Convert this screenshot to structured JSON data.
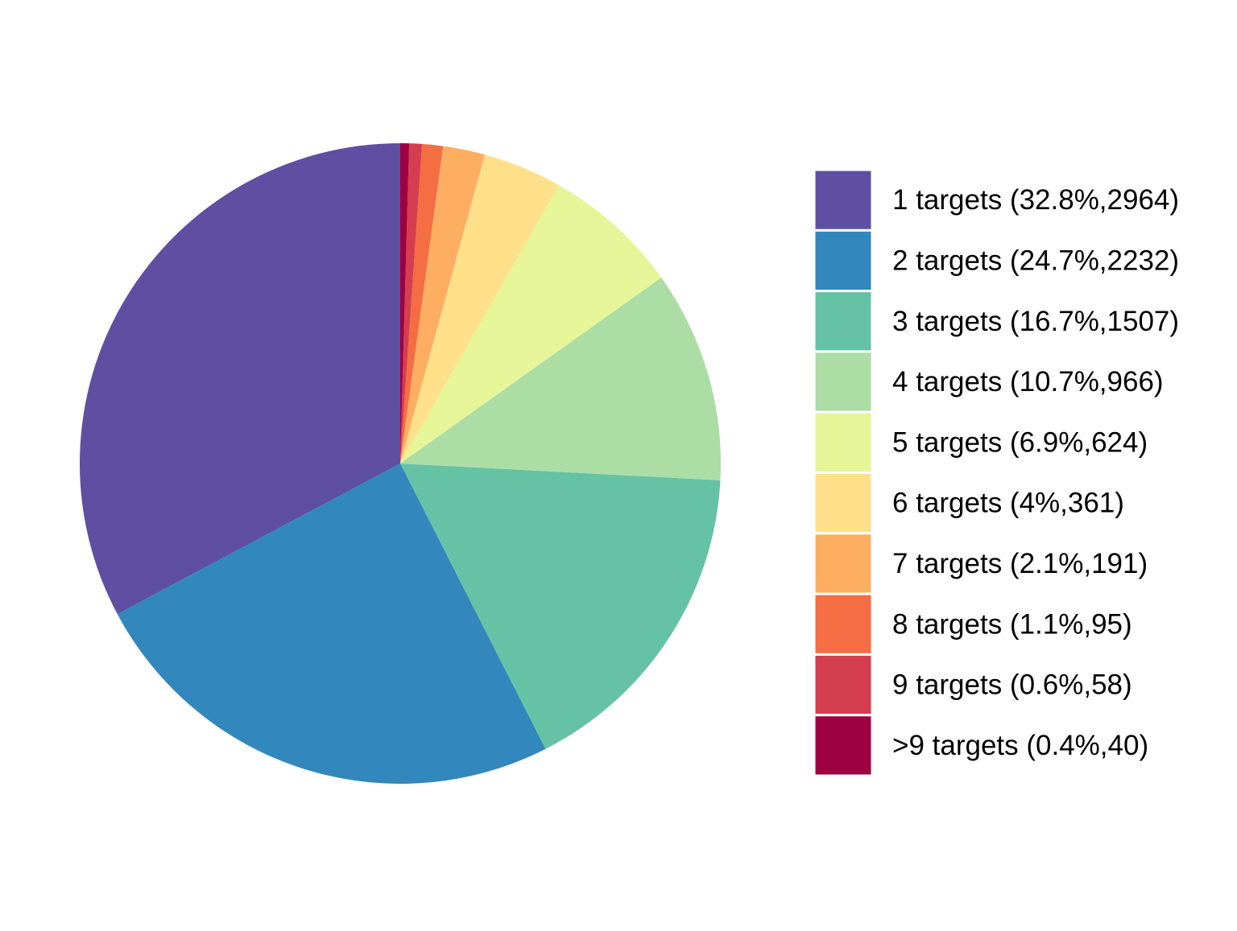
{
  "chart_data": {
    "type": "pie",
    "start_angle_deg": 0,
    "direction": "counterclockwise",
    "legend_position": "right",
    "slices": [
      {
        "label": "1 targets (32.8%,2964)",
        "category": "1 targets",
        "percent": 32.8,
        "value": 2964,
        "color": "#5E4FA2"
      },
      {
        "label": "2 targets (24.7%,2232)",
        "category": "2 targets",
        "percent": 24.7,
        "value": 2232,
        "color": "#3288BD"
      },
      {
        "label": "3 targets (16.7%,1507)",
        "category": "3 targets",
        "percent": 16.7,
        "value": 1507,
        "color": "#66C2A5"
      },
      {
        "label": "4 targets (10.7%,966)",
        "category": "4 targets",
        "percent": 10.7,
        "value": 966,
        "color": "#ABDDA4"
      },
      {
        "label": "5 targets (6.9%,624)",
        "category": "5 targets",
        "percent": 6.9,
        "value": 624,
        "color": "#E6F598"
      },
      {
        "label": "6 targets (4%,361)",
        "category": "6 targets",
        "percent": 4,
        "value": 361,
        "color": "#FEE08B"
      },
      {
        "label": "7 targets (2.1%,191)",
        "category": "7 targets",
        "percent": 2.1,
        "value": 191,
        "color": "#FDAE61"
      },
      {
        "label": "8 targets (1.1%,95)",
        "category": "8 targets",
        "percent": 1.1,
        "value": 95,
        "color": "#F46D43"
      },
      {
        "label": "9 targets (0.6%,58)",
        "category": "9 targets",
        "percent": 0.6,
        "value": 58,
        "color": "#D53E4F"
      },
      {
        "label": ">9 targets (0.4%,40)",
        "category": ">9 targets",
        "percent": 0.4,
        "value": 40,
        "color": "#9E0142"
      }
    ]
  }
}
